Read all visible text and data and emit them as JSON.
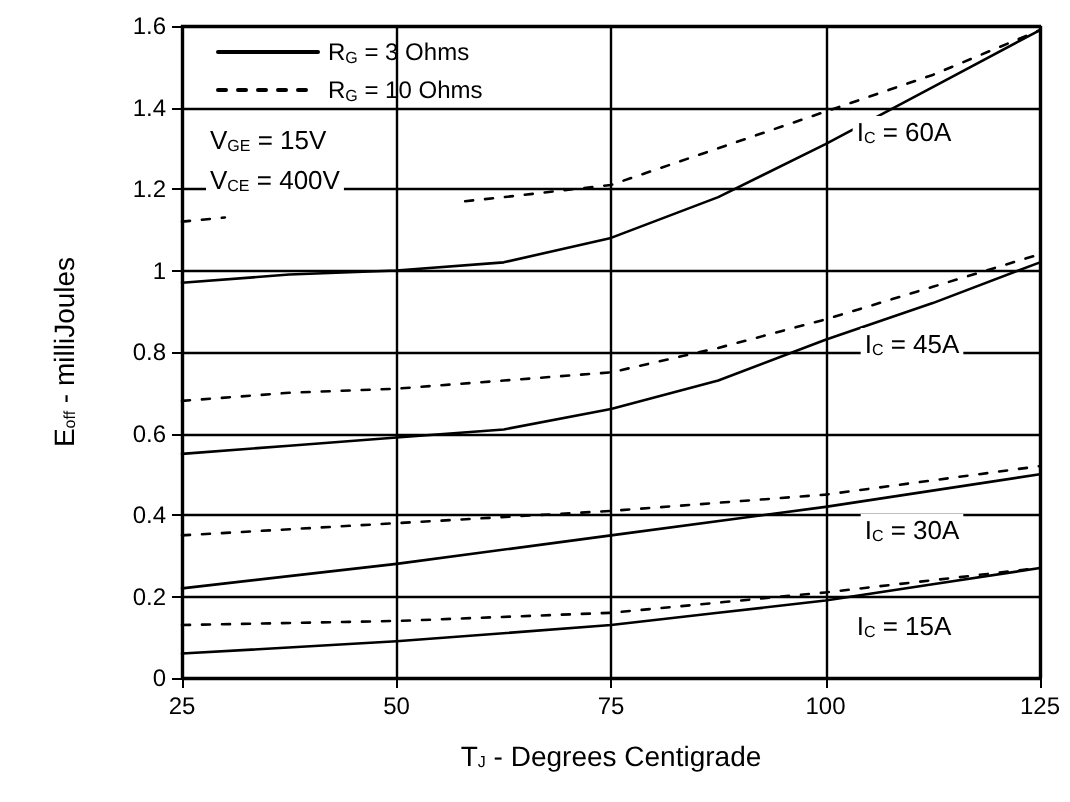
{
  "chart_data": {
    "type": "line",
    "xlabel": "T$_{J}$ - Degrees Centigrade",
    "ylabel": "E$_{off}$ - milliJoules",
    "xlim": [
      25,
      125
    ],
    "xticks": [
      25,
      50,
      75,
      100,
      125
    ],
    "ylim": [
      0,
      1.6
    ],
    "yticks": [
      0,
      0.2,
      0.4,
      0.6,
      0.8,
      1,
      1.2,
      1.4,
      1.6
    ],
    "grid": true,
    "legend": "top left",
    "marker": "none",
    "series": [
      {
        "name": "R$_{G}$ = 3 Ohms",
        "color": "#000000",
        "line_style": "solid",
        "x": [
          25,
          37.5,
          50,
          62.5,
          75,
          87.5,
          100,
          112.5,
          125
        ],
        "values": [
          0.97,
          0.99,
          1.0,
          1.02,
          1.08,
          1.18,
          1.31,
          1.45,
          1.59
        ]
      },
      {
        "name": "R$_{G}$ = 10 Ohms",
        "color": "#000000",
        "line_style": "dashed",
        "x": [
          25,
          30,
          37.5,
          50,
          58,
          62.5,
          75,
          87.5,
          100,
          112.5,
          125
        ],
        "values": [
          1.12,
          1.13,
          null,
          null,
          1.17,
          1.18,
          1.21,
          1.3,
          1.39,
          1.48,
          1.59
        ]
      },
      {
        "color": "#000000",
        "line_style": "solid",
        "x": [
          25,
          37.5,
          50,
          62.5,
          75,
          87.5,
          100,
          112.5,
          125
        ],
        "values": [
          0.55,
          0.57,
          0.59,
          0.61,
          0.66,
          0.73,
          0.83,
          0.92,
          1.02
        ]
      },
      {
        "color": "#000000",
        "line_style": "dashed",
        "x": [
          25,
          37.5,
          50,
          62.5,
          75,
          87.5,
          100,
          112.5,
          125
        ],
        "values": [
          0.68,
          0.7,
          0.71,
          0.73,
          0.75,
          0.81,
          0.88,
          0.96,
          1.04
        ]
      },
      {
        "color": "#000000",
        "line_style": "solid",
        "x": [
          25,
          50,
          75,
          100,
          125
        ],
        "values": [
          0.22,
          0.28,
          0.35,
          0.42,
          0.5
        ]
      },
      {
        "color": "#000000",
        "line_style": "dashed",
        "x": [
          25,
          50,
          75,
          100,
          125
        ],
        "values": [
          0.35,
          0.38,
          0.41,
          0.45,
          0.52
        ]
      },
      {
        "color": "#000000",
        "line_style": "solid",
        "x": [
          25,
          50,
          75,
          87.5,
          100,
          112.5,
          125
        ],
        "values": [
          0.06,
          0.09,
          0.13,
          0.16,
          0.19,
          0.23,
          0.27
        ]
      },
      {
        "color": "#000000",
        "line_style": "dashed",
        "x": [
          25,
          50,
          75,
          100,
          125
        ],
        "values": [
          0.13,
          0.14,
          0.16,
          0.21,
          0.27
        ]
      }
    ],
    "annotations": [
      "V$_{GE}$ = 15V",
      "V$_{CE}$ = 400V",
      "I$_{C}$ = 60A",
      "I$_{C}$ = 45A",
      "I$_{C}$ = 30A",
      "I$_{C}$ = 15A"
    ]
  }
}
